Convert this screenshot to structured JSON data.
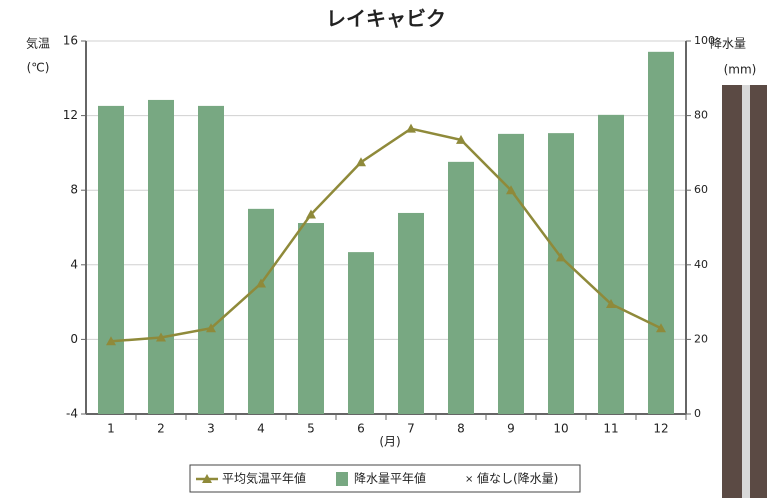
{
  "chart_data": {
    "type": "bar-line",
    "title": "レイキャビク",
    "categories": [
      "1",
      "2",
      "3",
      "4",
      "5",
      "6",
      "7",
      "8",
      "9",
      "10",
      "11",
      "12"
    ],
    "series": [
      {
        "name": "平均気温平年値",
        "type": "line",
        "color": "#8f8a3a",
        "axis": "y",
        "values": [
          -0.1,
          0.1,
          0.6,
          3.0,
          6.7,
          9.5,
          11.3,
          10.7,
          8.0,
          4.4,
          1.9,
          0.6
        ]
      },
      {
        "name": "降水量平年値",
        "type": "bar",
        "color": "#78a882",
        "axis": "y2",
        "values": [
          82.6,
          84.2,
          82.6,
          55.0,
          51.2,
          43.4,
          53.9,
          67.6,
          75.1,
          75.3,
          80.2,
          97.1
        ]
      }
    ],
    "no_data_label": "値なし(降水量)",
    "y_label": "気温",
    "y_unit": "(℃)",
    "y2_label": "降水量",
    "y2_unit": "(mm)",
    "x_label": "(月)",
    "ylim": [
      -4,
      16
    ],
    "yticks": [
      -4,
      0,
      4,
      8,
      12,
      16
    ],
    "y2lim": [
      0,
      100
    ],
    "y2ticks": [
      0,
      20,
      40,
      60,
      80,
      100
    ],
    "grid": true
  }
}
